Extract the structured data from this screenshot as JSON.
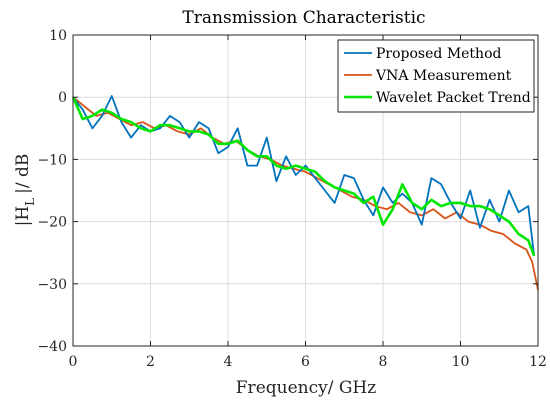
{
  "chart_data": {
    "type": "line",
    "title": "Transmission Characteristic",
    "xlabel": "Frequency/ GHz",
    "ylabel_parts": [
      "|H",
      "L",
      "|/ dB"
    ],
    "xlim": [
      0,
      12
    ],
    "ylim": [
      -40,
      10
    ],
    "xticks": [
      "0",
      "2",
      "4",
      "6",
      "8",
      "10",
      "12"
    ],
    "yticks": [
      "10",
      "0",
      "−10",
      "−20",
      "−30",
      "−40"
    ],
    "grid": true,
    "legend_position": "top-right",
    "series": [
      {
        "name": "Proposed Method",
        "color": "#0072BD",
        "x": [
          0.0,
          0.25,
          0.5,
          0.75,
          1.0,
          1.25,
          1.5,
          1.75,
          2.0,
          2.25,
          2.5,
          2.75,
          3.0,
          3.25,
          3.5,
          3.75,
          4.0,
          4.25,
          4.5,
          4.75,
          5.0,
          5.25,
          5.5,
          5.75,
          6.0,
          6.25,
          6.5,
          6.75,
          7.0,
          7.25,
          7.5,
          7.75,
          8.0,
          8.25,
          8.5,
          8.75,
          9.0,
          9.25,
          9.5,
          9.75,
          10.0,
          10.25,
          10.5,
          10.75,
          11.0,
          11.25,
          11.5,
          11.75,
          11.9
        ],
        "y": [
          0.0,
          -2.0,
          -5.0,
          -3.0,
          0.2,
          -4.0,
          -6.5,
          -4.5,
          -5.5,
          -5.0,
          -3.0,
          -4.0,
          -6.5,
          -4.0,
          -5.0,
          -9.0,
          -8.0,
          -5.0,
          -11.0,
          -11.0,
          -6.5,
          -13.5,
          -9.5,
          -12.5,
          -11.0,
          -13.0,
          -15.0,
          -17.0,
          -12.5,
          -13.0,
          -16.5,
          -19.0,
          -14.5,
          -17.0,
          -15.5,
          -17.0,
          -20.5,
          -13.0,
          -14.0,
          -17.0,
          -19.5,
          -15.0,
          -21.0,
          -16.5,
          -20.0,
          -15.0,
          -18.5,
          -17.5,
          -25.5
        ]
      },
      {
        "name": "VNA Measurement",
        "color": "#D95319",
        "x": [
          0.0,
          0.3,
          0.6,
          0.9,
          1.2,
          1.5,
          1.8,
          2.1,
          2.4,
          2.7,
          3.0,
          3.3,
          3.6,
          3.9,
          4.2,
          4.5,
          4.8,
          5.1,
          5.4,
          5.7,
          6.0,
          6.3,
          6.6,
          6.9,
          7.2,
          7.5,
          7.8,
          8.1,
          8.4,
          8.7,
          9.0,
          9.3,
          9.6,
          9.9,
          10.2,
          10.5,
          10.8,
          11.1,
          11.4,
          11.7,
          11.85,
          12.0
        ],
        "y": [
          0.0,
          -1.5,
          -3.0,
          -2.5,
          -3.5,
          -4.5,
          -4.0,
          -5.0,
          -4.5,
          -5.5,
          -6.0,
          -5.0,
          -6.5,
          -7.5,
          -7.0,
          -8.5,
          -9.5,
          -10.0,
          -11.0,
          -11.5,
          -12.0,
          -13.0,
          -14.0,
          -15.0,
          -16.0,
          -16.5,
          -17.5,
          -18.0,
          -17.0,
          -18.5,
          -19.0,
          -18.0,
          -19.5,
          -18.5,
          -20.0,
          -20.5,
          -21.5,
          -22.0,
          -23.5,
          -24.5,
          -26.5,
          -31.0
        ]
      },
      {
        "name": "Wavelet Packet Trend",
        "color": "#00E600",
        "x": [
          0.0,
          0.25,
          0.5,
          0.75,
          1.0,
          1.25,
          1.5,
          1.75,
          2.0,
          2.25,
          2.5,
          2.75,
          3.0,
          3.25,
          3.5,
          3.75,
          4.0,
          4.25,
          4.5,
          4.75,
          5.0,
          5.25,
          5.5,
          5.75,
          6.0,
          6.25,
          6.5,
          6.75,
          7.0,
          7.25,
          7.5,
          7.75,
          8.0,
          8.25,
          8.5,
          8.75,
          9.0,
          9.25,
          9.5,
          9.75,
          10.0,
          10.25,
          10.5,
          10.75,
          11.0,
          11.25,
          11.5,
          11.75,
          11.9
        ],
        "y": [
          0.0,
          -3.5,
          -3.0,
          -2.0,
          -2.5,
          -3.5,
          -4.0,
          -5.0,
          -5.5,
          -4.5,
          -4.5,
          -5.0,
          -5.5,
          -5.5,
          -6.0,
          -7.5,
          -7.5,
          -7.0,
          -8.5,
          -9.5,
          -9.5,
          -11.0,
          -11.5,
          -11.0,
          -11.5,
          -12.0,
          -13.5,
          -14.5,
          -15.0,
          -15.5,
          -17.0,
          -16.0,
          -20.5,
          -18.0,
          -14.0,
          -17.0,
          -18.0,
          -16.5,
          -17.5,
          -17.0,
          -17.0,
          -17.5,
          -17.5,
          -18.0,
          -19.0,
          -20.0,
          -22.0,
          -23.0,
          -25.5
        ]
      }
    ]
  }
}
